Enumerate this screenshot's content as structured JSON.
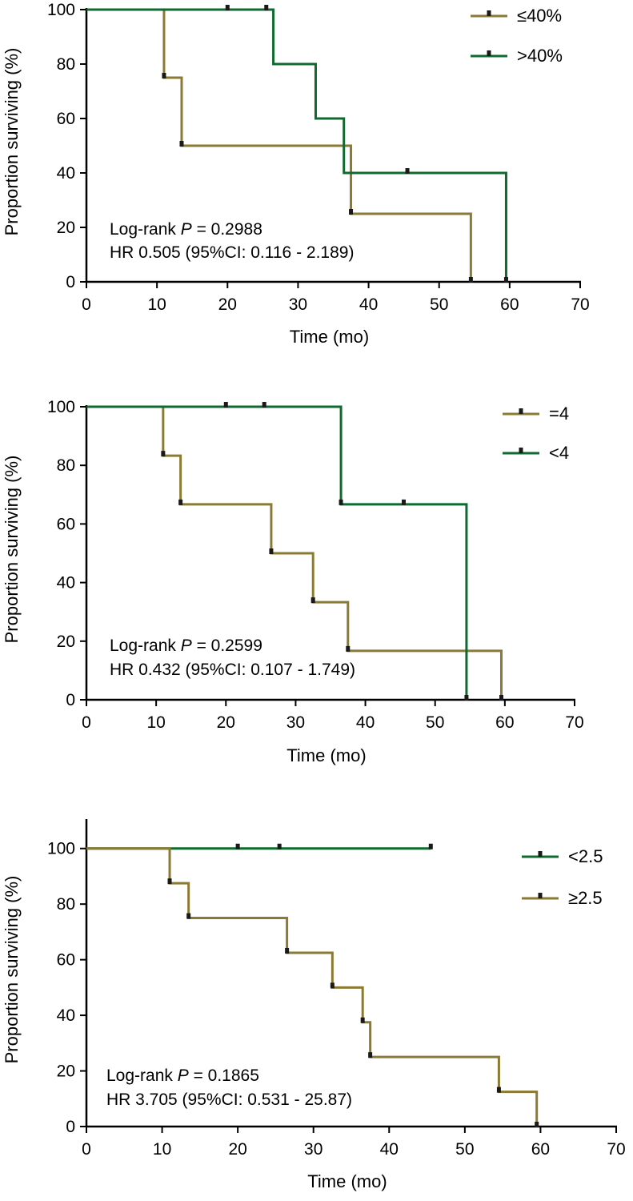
{
  "colors": {
    "olive": "#8B7A33",
    "green": "#0F6A2E",
    "axis": "#000000",
    "censor": "#1a1a1a"
  },
  "chart_data": [
    {
      "type": "line",
      "subtype": "kaplan-meier",
      "xlabel": "Time (mo)",
      "ylabel": "Proportion surviving (%)",
      "xlim": [
        0,
        70
      ],
      "ylim": [
        0,
        100
      ],
      "xticks": [
        "0",
        "10",
        "20",
        "30",
        "40",
        "50",
        "60",
        "70"
      ],
      "yticks": [
        "0",
        "20",
        "40",
        "60",
        "80",
        "100"
      ],
      "annotation_prefix": "Log-rank ",
      "annotation_p_symbol": "P",
      "annotation_p_value": " = 0.2988",
      "annotation_hr": "HR 0.505 (95%CI: 0.116 - 2.189)",
      "series": [
        {
          "name": "≤40%",
          "color": "olive",
          "steps": [
            [
              0,
              100
            ],
            [
              11,
              75
            ],
            [
              13.5,
              50
            ],
            [
              37.5,
              25
            ],
            [
              54.5,
              0
            ]
          ],
          "end": 54.5,
          "censors": [
            [
              11,
              75
            ],
            [
              13.5,
              50
            ],
            [
              37.5,
              25
            ],
            [
              54.5,
              0
            ]
          ]
        },
        {
          "name": ">40%",
          "color": "green",
          "steps": [
            [
              0,
              100
            ],
            [
              26.5,
              80
            ],
            [
              32.5,
              60
            ],
            [
              36.5,
              40
            ],
            [
              59.5,
              0
            ]
          ],
          "end": 59.5,
          "censors": [
            [
              20,
              100
            ],
            [
              25.5,
              100
            ],
            [
              45.5,
              40
            ],
            [
              59.5,
              0
            ]
          ]
        }
      ]
    },
    {
      "type": "line",
      "subtype": "kaplan-meier",
      "xlabel": "Time (mo)",
      "ylabel": "Proportion surviving (%)",
      "xlim": [
        0,
        70
      ],
      "ylim": [
        0,
        100
      ],
      "xticks": [
        "0",
        "10",
        "20",
        "30",
        "40",
        "50",
        "60",
        "70"
      ],
      "yticks": [
        "0",
        "20",
        "40",
        "60",
        "80",
        "100"
      ],
      "annotation_prefix": "Log-rank ",
      "annotation_p_symbol": "P",
      "annotation_p_value": " = 0.2599",
      "annotation_hr": "HR 0.432 (95%CI: 0.107 - 1.749)",
      "series": [
        {
          "name": "=4",
          "color": "olive",
          "steps": [
            [
              0,
              100
            ],
            [
              11,
              83.3
            ],
            [
              13.5,
              66.7
            ],
            [
              26.5,
              50
            ],
            [
              32.5,
              33.3
            ],
            [
              37.5,
              16.7
            ],
            [
              59.5,
              0
            ]
          ],
          "end": 59.5,
          "censors": [
            [
              11,
              83.3
            ],
            [
              13.5,
              66.7
            ],
            [
              26.5,
              50
            ],
            [
              32.5,
              33.3
            ],
            [
              37.5,
              16.7
            ],
            [
              59.5,
              0
            ]
          ]
        },
        {
          "name": "<4",
          "color": "green",
          "steps": [
            [
              0,
              100
            ],
            [
              36.5,
              66.7
            ],
            [
              54.5,
              0
            ]
          ],
          "end": 54.5,
          "censors": [
            [
              20,
              100
            ],
            [
              25.5,
              100
            ],
            [
              36.5,
              66.7
            ],
            [
              45.5,
              66.7
            ],
            [
              54.5,
              0
            ]
          ]
        }
      ]
    },
    {
      "type": "line",
      "subtype": "kaplan-meier",
      "xlabel": "Time (mo)",
      "ylabel": "Proportion surviving (%)",
      "xlim": [
        0,
        70
      ],
      "ylim": [
        0,
        110
      ],
      "xticks": [
        "0",
        "10",
        "20",
        "30",
        "40",
        "50",
        "60",
        "70"
      ],
      "yticks": [
        "0",
        "20",
        "40",
        "60",
        "80",
        "100"
      ],
      "annotation_prefix": "Log-rank ",
      "annotation_p_symbol": "P",
      "annotation_p_value": " = 0.1865",
      "annotation_hr": "HR 3.705 (95%CI: 0.531 - 25.87)",
      "series": [
        {
          "name": "<2.5",
          "color": "green",
          "steps": [
            [
              0,
              100
            ]
          ],
          "end": 45.5,
          "censors": [
            [
              20,
              100
            ],
            [
              25.5,
              100
            ],
            [
              45.5,
              100
            ]
          ]
        },
        {
          "name": "≥2.5",
          "color": "olive",
          "steps": [
            [
              0,
              100
            ],
            [
              11,
              87.5
            ],
            [
              13.5,
              75
            ],
            [
              26.5,
              62.5
            ],
            [
              32.5,
              50
            ],
            [
              36.5,
              37.5
            ],
            [
              37.5,
              25
            ],
            [
              54.5,
              12.5
            ],
            [
              59.5,
              0
            ]
          ],
          "end": 59.5,
          "censors": [
            [
              11,
              87.5
            ],
            [
              13.5,
              75
            ],
            [
              26.5,
              62.5
            ],
            [
              32.5,
              50
            ],
            [
              36.5,
              37.5
            ],
            [
              37.5,
              25
            ],
            [
              54.5,
              12.5
            ],
            [
              59.5,
              0
            ]
          ]
        }
      ]
    }
  ]
}
